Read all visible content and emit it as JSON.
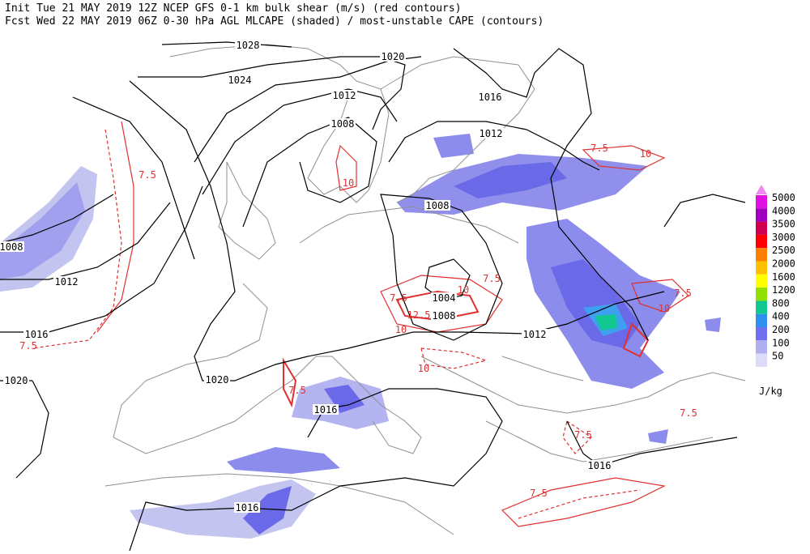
{
  "header": {
    "line1": "Init  Tue 21 MAY 2019 12Z  NCEP GFS 0-1 km bulk shear (m/s) (red contours)",
    "line2": "Fcst Wed 22 MAY 2019 06Z  0-30 hPa AGL MLCAPE (shaded) / most-unstable CAPE (contours)"
  },
  "isobar_labels": [
    "1028",
    "1024",
    "1020",
    "1016",
    "1012",
    "1012",
    "1008",
    "1008",
    "1004",
    "1008",
    "1012",
    "1008",
    "1012",
    "1016",
    "1020",
    "1020",
    "1016",
    "1016",
    "1016"
  ],
  "shear_labels": [
    "7.5",
    "10",
    "7.5",
    "10",
    "7.5",
    "10",
    "7.5",
    "12.5",
    "10",
    "10",
    "7.5",
    "7.5",
    "7.5",
    "7.5",
    "7.5",
    "10",
    "7.5"
  ],
  "legend": {
    "levels": [
      "5000",
      "4000",
      "3500",
      "3000",
      "2500",
      "2000",
      "1600",
      "1200",
      "800",
      "400",
      "200",
      "100",
      "50"
    ],
    "colors": [
      "#e010e0",
      "#a000c0",
      "#d00050",
      "#ff0000",
      "#ff8000",
      "#ffc000",
      "#ffff00",
      "#90e000",
      "#10c890",
      "#3090f0",
      "#7070f0",
      "#b0b0f0",
      "#dcdcf8"
    ],
    "unit": "J/kg"
  }
}
